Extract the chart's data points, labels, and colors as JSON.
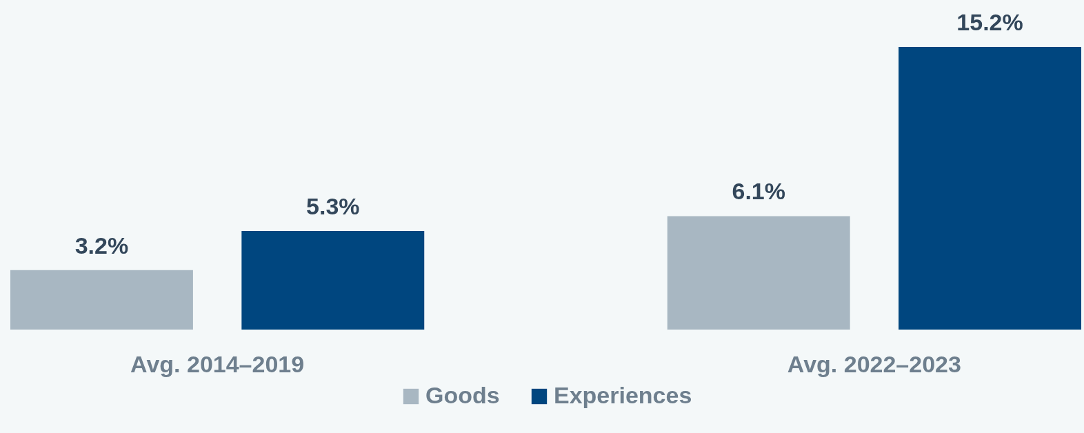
{
  "chart_data": {
    "type": "bar",
    "categories": [
      "Avg. 2014–2019",
      "Avg. 2022–2023"
    ],
    "series": [
      {
        "name": "Goods",
        "color": "#a8b7c2",
        "values": [
          3.2,
          6.1
        ],
        "value_labels": [
          "3.2%",
          "6.1%"
        ]
      },
      {
        "name": "Experiences",
        "color": "#00467f",
        "values": [
          5.3,
          15.2
        ],
        "value_labels": [
          "5.3%",
          "15.2%"
        ]
      }
    ],
    "tick_labels": "x",
    "legend": "bottom"
  }
}
